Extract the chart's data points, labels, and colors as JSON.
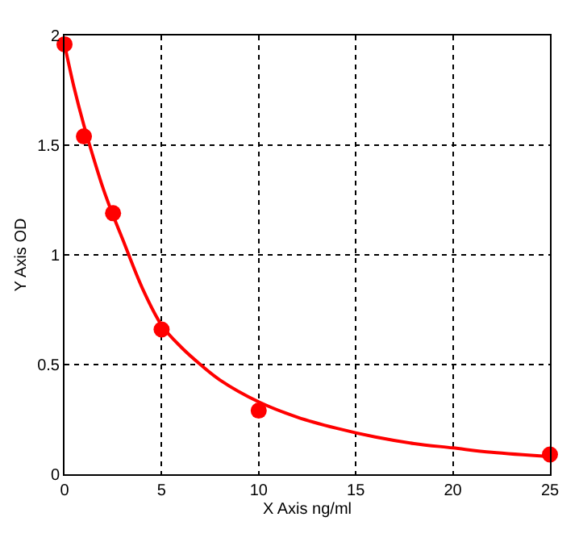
{
  "chart_data": {
    "type": "scatter",
    "xlabel": "X Axis ng/ml",
    "ylabel": "Y Axis OD",
    "xlim": [
      0,
      25
    ],
    "ylim": [
      0,
      2
    ],
    "xticks": [
      0,
      5,
      10,
      15,
      20,
      25
    ],
    "yticks": [
      0,
      0.5,
      1,
      1.5,
      2
    ],
    "grid": true,
    "marker": "circle",
    "series": [
      {
        "color": "#ff0000",
        "x": [
          0,
          1,
          2.5,
          5,
          10,
          25
        ],
        "values": [
          1.96,
          1.54,
          1.19,
          0.66,
          0.29,
          0.09
        ]
      },
      {
        "type": "line",
        "color": "#ff0000",
        "marker": "none",
        "x": [
          0,
          0.5,
          1,
          1.5,
          2,
          2.5,
          3,
          4,
          5,
          6,
          7,
          8,
          10,
          12,
          14,
          16,
          18,
          20,
          22,
          25
        ],
        "values": [
          1.96,
          1.76,
          1.59,
          1.44,
          1.3,
          1.18,
          1.07,
          0.85,
          0.68,
          0.58,
          0.5,
          0.43,
          0.33,
          0.26,
          0.21,
          0.17,
          0.14,
          0.12,
          0.1,
          0.08
        ]
      }
    ]
  }
}
